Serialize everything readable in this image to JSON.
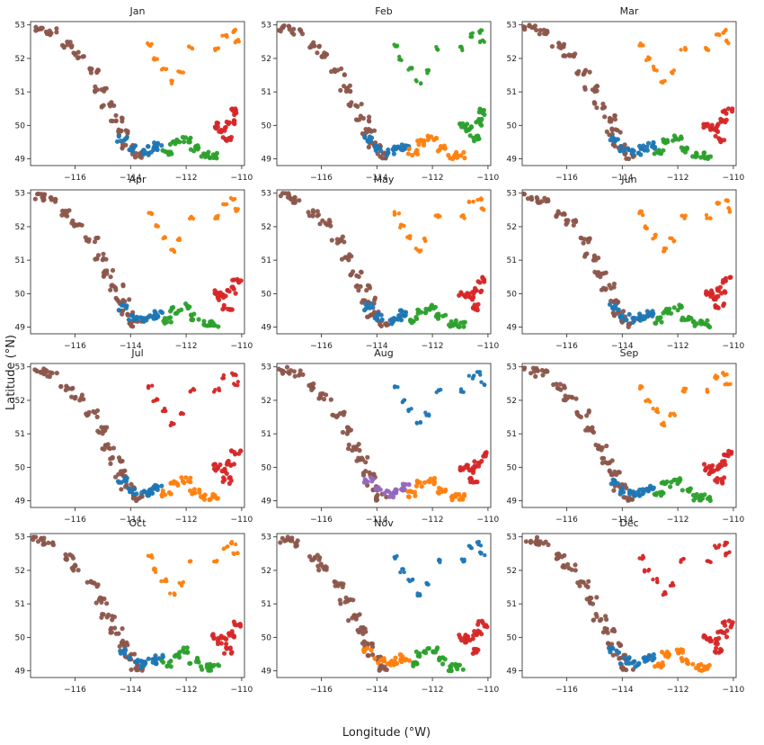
{
  "chart_data": {
    "type": "scatter",
    "xlabel": "Longitude ($^\\circ$W)",
    "ylabel": "Latitude ($^\\circ$N)",
    "xlim": [
      -117.6,
      -109.9
    ],
    "ylim": [
      48.8,
      53.1
    ],
    "xticks": [
      -116,
      -114,
      -112,
      -110
    ],
    "yticks": [
      49,
      50,
      51,
      52,
      53
    ],
    "grid": false,
    "legend": "none",
    "cluster_colors": {
      "blue": "#1f77b4",
      "orange": "#ff7f0e",
      "green": "#2ca02c",
      "red": "#d62728",
      "purple": "#9467bd",
      "brown": "#8c564b"
    },
    "regions": {
      "northwest_line": [
        [
          -117.3,
          52.9
        ],
        [
          -116.9,
          52.8
        ],
        [
          -116.3,
          52.4
        ],
        [
          -115.9,
          52.1
        ],
        [
          -115.4,
          51.6
        ],
        [
          -115.1,
          51.1
        ],
        [
          -114.8,
          50.6
        ],
        [
          -114.5,
          50.2
        ],
        [
          -114.3,
          49.8
        ],
        [
          -114.1,
          49.4
        ],
        [
          -113.8,
          49.1
        ]
      ],
      "northeast_scatter": [
        [
          -113.3,
          52.4
        ],
        [
          -113.1,
          52.0
        ],
        [
          -112.8,
          51.7
        ],
        [
          -112.5,
          51.3
        ],
        [
          -112.2,
          51.6
        ],
        [
          -111.8,
          52.3
        ],
        [
          -110.9,
          52.3
        ],
        [
          -110.6,
          52.7
        ],
        [
          -110.3,
          52.8
        ],
        [
          -110.2,
          52.5
        ]
      ],
      "south_center": [
        [
          -114.3,
          49.6
        ],
        [
          -113.9,
          49.3
        ],
        [
          -113.5,
          49.2
        ],
        [
          -113.2,
          49.3
        ],
        [
          -113.0,
          49.4
        ]
      ],
      "south_east": [
        [
          -112.7,
          49.2
        ],
        [
          -112.4,
          49.5
        ],
        [
          -112.0,
          49.6
        ],
        [
          -111.7,
          49.3
        ],
        [
          -111.3,
          49.1
        ],
        [
          -111.0,
          49.1
        ]
      ],
      "far_east": [
        [
          -110.7,
          49.9
        ],
        [
          -110.4,
          50.1
        ],
        [
          -110.2,
          50.4
        ],
        [
          -110.5,
          49.6
        ],
        [
          -110.9,
          50.0
        ]
      ]
    },
    "panels": [
      {
        "title": "Jan",
        "map": {
          "northwest_line": "brown",
          "northeast_scatter": "orange",
          "south_center": "blue",
          "south_east": "green",
          "far_east": "red"
        }
      },
      {
        "title": "Feb",
        "map": {
          "northwest_line": "brown",
          "northeast_scatter": "green",
          "south_center": "blue",
          "south_east": "orange",
          "far_east": "green"
        }
      },
      {
        "title": "Mar",
        "map": {
          "northwest_line": "brown",
          "northeast_scatter": "orange",
          "south_center": "blue",
          "south_east": "green",
          "far_east": "red"
        }
      },
      {
        "title": "Apr",
        "map": {
          "northwest_line": "brown",
          "northeast_scatter": "orange",
          "south_center": "blue",
          "south_east": "green",
          "far_east": "red"
        }
      },
      {
        "title": "May",
        "map": {
          "northwest_line": "brown",
          "northeast_scatter": "orange",
          "south_center": "blue",
          "south_east": "green",
          "far_east": "red"
        }
      },
      {
        "title": "Jun",
        "map": {
          "northwest_line": "brown",
          "northeast_scatter": "orange",
          "south_center": "blue",
          "south_east": "green",
          "far_east": "red"
        }
      },
      {
        "title": "Jul",
        "map": {
          "northwest_line": "brown",
          "northeast_scatter": "red",
          "south_center": "blue",
          "south_east": "orange",
          "far_east": "red"
        }
      },
      {
        "title": "Aug",
        "map": {
          "northwest_line": "brown",
          "northeast_scatter": "blue",
          "south_center": "purple",
          "south_east": "orange",
          "far_east": "red"
        }
      },
      {
        "title": "Sep",
        "map": {
          "northwest_line": "brown",
          "northeast_scatter": "orange",
          "south_center": "blue",
          "south_east": "green",
          "far_east": "red"
        }
      },
      {
        "title": "Oct",
        "map": {
          "northwest_line": "brown",
          "northeast_scatter": "orange",
          "south_center": "blue",
          "south_east": "green",
          "far_east": "red"
        }
      },
      {
        "title": "Nov",
        "map": {
          "northwest_line": "brown",
          "northeast_scatter": "blue",
          "south_center": "orange",
          "south_east": "green",
          "far_east": "red"
        }
      },
      {
        "title": "Dec",
        "map": {
          "northwest_line": "brown",
          "northeast_scatter": "red",
          "south_center": "blue",
          "south_east": "orange",
          "far_east": "red"
        }
      }
    ]
  }
}
